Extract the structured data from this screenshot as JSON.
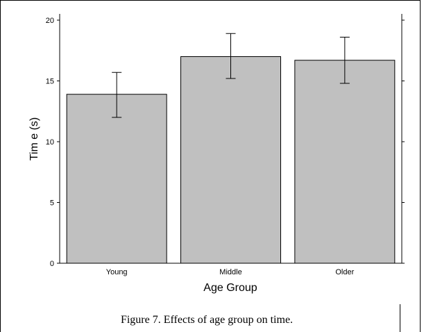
{
  "chart_data": {
    "type": "bar",
    "categories": [
      "Young",
      "Middle",
      "Older"
    ],
    "values": [
      13.9,
      17.0,
      16.7
    ],
    "error_low": [
      12.0,
      15.2,
      14.8
    ],
    "error_high": [
      15.7,
      18.9,
      18.6
    ],
    "ylim": [
      0,
      20
    ],
    "yticks": [
      "0",
      "5",
      "10",
      "15",
      "20"
    ],
    "xlabel": "Age Group",
    "ylabel": "Tim e (s)",
    "grid": false,
    "bar_color": "#c0c0c0",
    "caption": "Figure 7.  Effects of age group on time."
  }
}
